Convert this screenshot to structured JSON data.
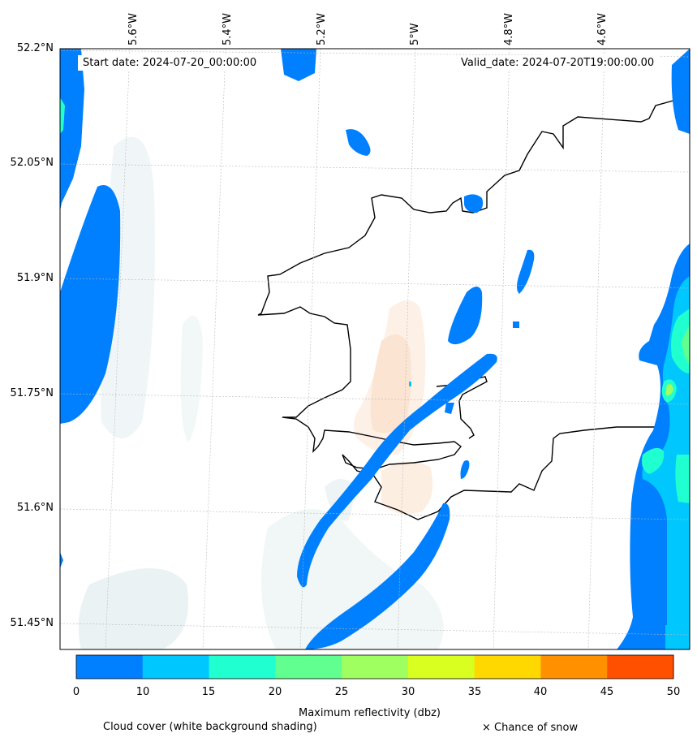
{
  "map": {
    "start_date": "Start date: 2024-07-20_00:00:00",
    "valid_date": "Valid_date: 2024-07-20T19:00:00.00",
    "lon_labels": [
      "5.6°W",
      "5.4°W",
      "5.2°W",
      "5°W",
      "4.8°W",
      "4.6°W"
    ],
    "lat_labels": [
      "52.2°N",
      "52.05°N",
      "51.9°N",
      "51.75°N",
      "51.6°N",
      "51.45°N"
    ]
  },
  "colorbar": {
    "title": "Maximum reflectivity (dbz)",
    "ticks": [
      "0",
      "10",
      "15",
      "20",
      "25",
      "30",
      "35",
      "40",
      "45",
      "50"
    ],
    "colors": [
      "#0080ff",
      "#00c8ff",
      "#20ffd0",
      "#60ff90",
      "#a0ff60",
      "#d8ff20",
      "#ffd800",
      "#ff9000",
      "#ff5000"
    ]
  },
  "legend": {
    "cloud_cover": "Cloud cover (white background shading)",
    "snow": "× Chance of snow"
  }
}
